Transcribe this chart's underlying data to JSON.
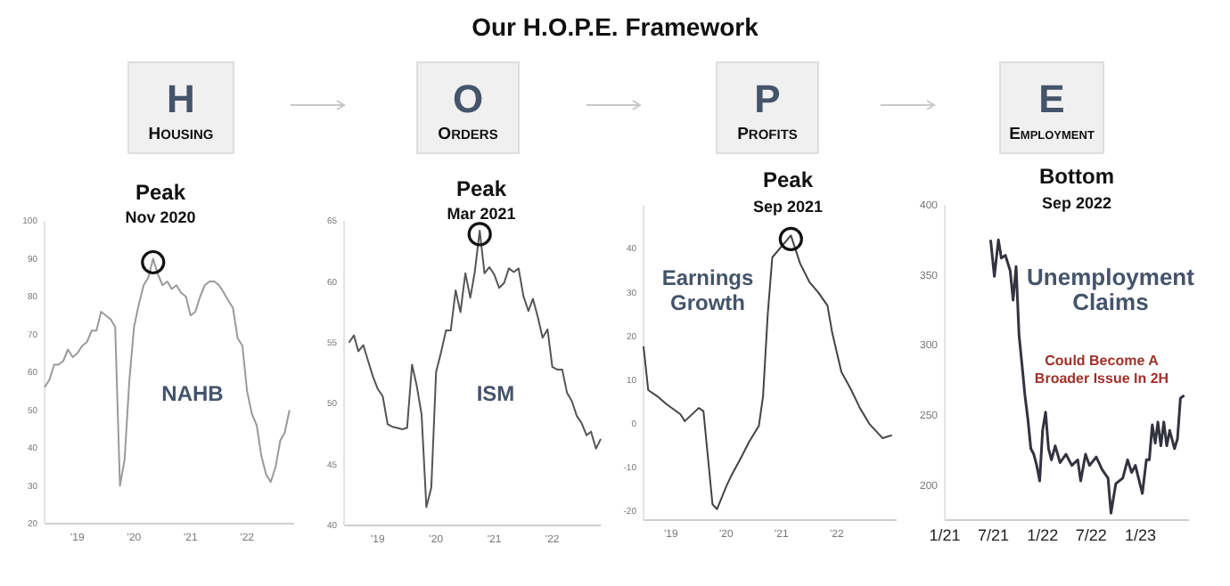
{
  "chart_data": [
    {
      "type": "other",
      "title": "Our H.O.P.E. Framework"
    },
    {
      "type": "line",
      "title": "Peak",
      "subtitle": "Nov 2020",
      "annotations": [
        "H",
        "HOUSING",
        "NAHB"
      ],
      "xlim": [
        "2018-12",
        "2023-05"
      ],
      "ylim": [
        20,
        100
      ],
      "xticks": [
        {
          "value": "2019-07",
          "label": "'19"
        },
        {
          "value": "2020-07",
          "label": "'20"
        },
        {
          "value": "2021-07",
          "label": "'21"
        },
        {
          "value": "2022-07",
          "label": "'22"
        }
      ],
      "yticks": [
        20,
        30,
        40,
        50,
        60,
        70,
        80,
        90,
        100
      ],
      "x": [
        "2018-12",
        "2019-01",
        "2019-02",
        "2019-03",
        "2019-04",
        "2019-05",
        "2019-06",
        "2019-07",
        "2019-08",
        "2019-09",
        "2019-10",
        "2019-11",
        "2019-12",
        "2020-01",
        "2020-02",
        "2020-03",
        "2020-04",
        "2020-05",
        "2020-06",
        "2020-07",
        "2020-08",
        "2020-09",
        "2020-10",
        "2020-11",
        "2020-12",
        "2021-01",
        "2021-02",
        "2021-03",
        "2021-04",
        "2021-05",
        "2021-06",
        "2021-07",
        "2021-08",
        "2021-09",
        "2021-10",
        "2021-11",
        "2021-12",
        "2022-01",
        "2022-02",
        "2022-03",
        "2022-04",
        "2022-05",
        "2022-06",
        "2022-07",
        "2022-08",
        "2022-09",
        "2022-10",
        "2022-11",
        "2022-12",
        "2023-01",
        "2023-02",
        "2023-03",
        "2023-04"
      ],
      "series": [
        {
          "color": "#9a9a9a",
          "values": [
            56,
            58,
            62,
            62,
            63,
            66,
            64,
            65,
            67,
            68,
            71,
            71,
            76,
            75,
            74,
            72,
            30,
            37,
            58,
            72,
            78,
            83,
            85,
            90,
            86,
            83,
            84,
            82,
            83,
            81,
            80,
            75,
            76,
            80,
            83,
            84,
            84,
            83,
            81,
            79,
            77,
            69,
            67,
            55,
            49,
            46,
            38,
            33,
            31,
            35,
            42,
            44,
            50
          ]
        }
      ]
    },
    {
      "type": "line",
      "title": "Peak",
      "subtitle": "Mar 2021",
      "annotations": [
        "O",
        "ORDERS",
        "ISM"
      ],
      "xlim": [
        "2018-12",
        "2023-05"
      ],
      "ylim": [
        40,
        65
      ],
      "xticks": [
        {
          "value": "2019-07",
          "label": "'19"
        },
        {
          "value": "2020-07",
          "label": "'20"
        },
        {
          "value": "2021-07",
          "label": "'21"
        },
        {
          "value": "2022-07",
          "label": "'22"
        }
      ],
      "yticks": [
        40,
        45,
        50,
        55,
        60,
        65
      ],
      "x": [
        "2019-01",
        "2019-02",
        "2019-03",
        "2019-04",
        "2019-05",
        "2019-06",
        "2019-07",
        "2019-08",
        "2019-09",
        "2019-10",
        "2019-11",
        "2019-12",
        "2020-01",
        "2020-02",
        "2020-03",
        "2020-04",
        "2020-05",
        "2020-06",
        "2020-07",
        "2020-08",
        "2020-09",
        "2020-10",
        "2020-11",
        "2020-12",
        "2021-01",
        "2021-02",
        "2021-03",
        "2021-04",
        "2021-05",
        "2021-06",
        "2021-07",
        "2021-08",
        "2021-09",
        "2021-10",
        "2021-11",
        "2021-12",
        "2022-01",
        "2022-02",
        "2022-03",
        "2022-04",
        "2022-05",
        "2022-06",
        "2022-07",
        "2022-08",
        "2022-09",
        "2022-10",
        "2022-11",
        "2022-12",
        "2023-01",
        "2023-02",
        "2023-03",
        "2023-04",
        "2023-05"
      ],
      "series": [
        {
          "color": "#555555",
          "values": [
            55,
            55.6,
            54.3,
            54.8,
            53.5,
            52.2,
            51.2,
            50.6,
            48.3,
            48.1,
            48,
            47.9,
            48,
            53.2,
            51.5,
            49.1,
            41.5,
            43.1,
            52.6,
            54.2,
            56,
            56,
            59.3,
            57.5,
            60.7,
            58.7,
            60.8,
            64.2,
            60.7,
            61.2,
            60.6,
            59.5,
            59.9,
            61.1,
            60.8,
            61.1,
            58.8,
            57.6,
            58.6,
            57.1,
            55.4,
            56.1,
            53,
            52.8,
            52.8,
            50.9,
            50.2,
            49,
            48.4,
            47.4,
            47.7,
            46.3,
            47.1
          ]
        }
      ]
    },
    {
      "type": "line",
      "title": "Peak",
      "subtitle": "Sep 2021",
      "annotations": [
        "P",
        "PROFITS",
        "Earnings Growth"
      ],
      "xlim": [
        "2019-01",
        "2023-08"
      ],
      "ylim": [
        -22,
        50
      ],
      "xticks": [
        {
          "value": "2019-07",
          "label": "'19"
        },
        {
          "value": "2020-07",
          "label": "'20"
        },
        {
          "value": "2021-07",
          "label": "'21"
        },
        {
          "value": "2022-07",
          "label": "'22"
        }
      ],
      "yticks": [
        -20,
        -10,
        0,
        10,
        20,
        30,
        40
      ],
      "x": [
        "2019-01",
        "2019-02",
        "2019-04",
        "2019-06",
        "2019-09",
        "2019-10",
        "2020-01",
        "2020-02",
        "2020-04",
        "2020-05",
        "2020-07",
        "2020-08",
        "2020-10",
        "2020-12",
        "2021-02",
        "2021-03",
        "2021-04",
        "2021-05",
        "2021-09",
        "2021-11",
        "2022-01",
        "2022-03",
        "2022-05",
        "2022-06",
        "2022-08",
        "2022-10",
        "2022-12",
        "2023-02",
        "2023-05",
        "2023-07"
      ],
      "series": [
        {
          "color": "#444444",
          "values": [
            17.7,
            7.7,
            6.3,
            4.5,
            2.2,
            0.6,
            3.6,
            2.9,
            -18.4,
            -19.5,
            -14.3,
            -12,
            -8.1,
            -4,
            -0.5,
            6.3,
            25,
            38,
            43,
            36.6,
            32.4,
            30,
            27,
            20.8,
            11.8,
            8,
            3.6,
            0,
            -3.3,
            -2.6
          ]
        }
      ]
    },
    {
      "type": "line",
      "title": "Bottom",
      "subtitle": "Sep 2022",
      "annotations": [
        "E",
        "EMPLOYMENT",
        "Unemployment Claims",
        "Could Become A Broader Issue In 2H"
      ],
      "xlim": [
        "2021-01",
        "2023-07"
      ],
      "ylim": [
        175,
        400
      ],
      "xticks": [
        {
          "value": "2021-01",
          "label": "1/21"
        },
        {
          "value": "2021-07",
          "label": "7/21"
        },
        {
          "value": "2022-01",
          "label": "1/22"
        },
        {
          "value": "2022-07",
          "label": "7/22"
        },
        {
          "value": "2023-01",
          "label": "1/23"
        }
      ],
      "yticks": [
        200,
        250,
        300,
        350,
        400
      ],
      "x": [
        "2021-06-21",
        "2021-07-05",
        "2021-07-20",
        "2021-07-31",
        "2021-08-15",
        "2021-09-02",
        "2021-09-13",
        "2021-09-24",
        "2021-10-05",
        "2021-10-16",
        "2021-10-27",
        "2021-11-07",
        "2021-11-18",
        "2021-11-29",
        "2021-12-10",
        "2021-12-21",
        "2022-01-01",
        "2022-01-12",
        "2022-01-23",
        "2022-02-03",
        "2022-02-17",
        "2022-03-07",
        "2022-03-29",
        "2022-04-20",
        "2022-05-12",
        "2022-05-23",
        "2022-06-10",
        "2022-06-25",
        "2022-07-20",
        "2022-08-11",
        "2022-09-02",
        "2022-09-13",
        "2022-10-01",
        "2022-10-27",
        "2022-11-14",
        "2022-11-29",
        "2022-12-13",
        "2023-01-08",
        "2023-01-23",
        "2023-02-03",
        "2023-02-14",
        "2023-02-25",
        "2023-03-07",
        "2023-03-18",
        "2023-03-29",
        "2023-04-09",
        "2023-04-20",
        "2023-05-08",
        "2023-05-19",
        "2023-05-30",
        "2023-06-13"
      ],
      "series": [
        {
          "color": "#333340",
          "values": [
            375,
            349,
            375,
            362,
            364,
            353,
            332,
            356,
            307,
            286,
            264,
            247,
            226,
            222,
            214,
            203,
            239,
            252,
            226,
            218,
            228,
            216,
            222,
            214,
            218,
            203,
            222,
            214,
            220,
            211,
            205,
            180,
            201,
            205,
            218,
            209,
            214,
            194,
            218,
            218,
            243,
            230,
            245,
            228,
            245,
            228,
            239,
            226,
            233,
            262,
            264
          ]
        }
      ]
    }
  ]
}
